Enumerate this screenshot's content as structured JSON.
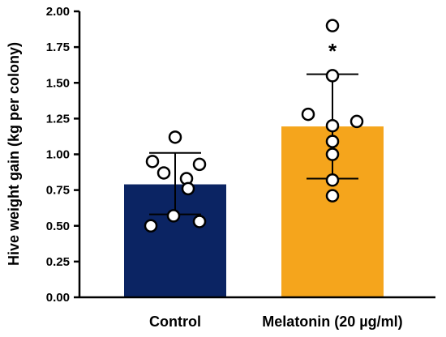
{
  "chart_data": {
    "type": "bar",
    "categories": [
      "Control",
      "Melatonin (20 µg/ml)"
    ],
    "values": [
      0.79,
      1.195
    ],
    "error_low": [
      0.58,
      0.83
    ],
    "error_high": [
      1.01,
      1.56
    ],
    "points": [
      [
        1.12,
        0.95,
        0.93,
        0.87,
        0.83,
        0.76,
        0.57,
        0.53,
        0.5
      ],
      [
        1.9,
        1.55,
        1.28,
        1.23,
        1.2,
        1.09,
        1.0,
        0.82,
        0.71
      ]
    ],
    "colors": [
      "#0b2463",
      "#f5a51c"
    ],
    "ylabel": "Hive weight gain (kg per colony)",
    "xlabel": "",
    "ylim": [
      0,
      2
    ],
    "yticks": [
      "0.00",
      "0.25",
      "0.50",
      "0.75",
      "1.00",
      "1.25",
      "1.50",
      "1.75",
      "2.00"
    ],
    "annotations": [
      {
        "text": "*",
        "category": 1,
        "y": 1.75
      }
    ],
    "grid": false
  }
}
